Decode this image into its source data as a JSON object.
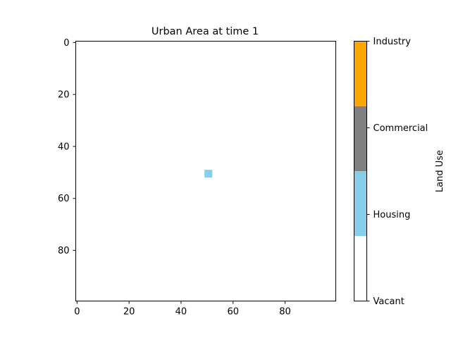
{
  "chart_data": {
    "type": "heatmap",
    "title": "Urban Area at time 1",
    "xlabel": "",
    "ylabel": "",
    "grid_size": [
      100,
      100
    ],
    "xlim": [
      -0.5,
      99.5
    ],
    "ylim": [
      99.5,
      -0.5
    ],
    "x_ticks": [
      0,
      20,
      40,
      60,
      80
    ],
    "y_ticks": [
      0,
      20,
      40,
      60,
      80
    ],
    "grid": false,
    "background_category": "Vacant",
    "cells": [
      {
        "rows": [
          49,
          51
        ],
        "cols": [
          49,
          51
        ],
        "category": "Housing",
        "value": 1
      }
    ],
    "colorbar": {
      "label": "Land Use",
      "placement": "right",
      "categories": [
        {
          "value": 0,
          "label": "Vacant",
          "color": "#ffffff"
        },
        {
          "value": 1,
          "label": "Housing",
          "color": "#87ceeb"
        },
        {
          "value": 2,
          "label": "Commercial",
          "color": "#808080"
        },
        {
          "value": 3,
          "label": "Industry",
          "color": "#ffa500"
        }
      ]
    }
  }
}
